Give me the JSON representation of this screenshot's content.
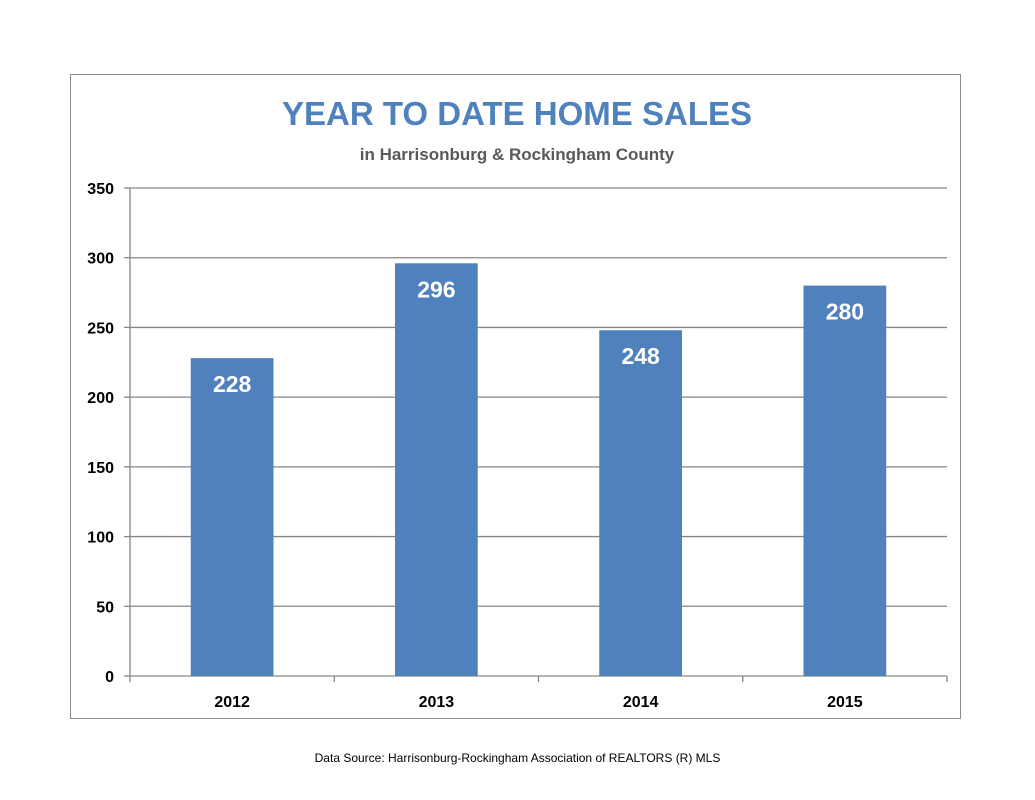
{
  "chart_data": {
    "type": "bar",
    "title": "YEAR TO DATE HOME SALES",
    "subtitle": "in Harrisonburg & Rockingham County",
    "categories": [
      "2012",
      "2013",
      "2014",
      "2015"
    ],
    "values": [
      228,
      296,
      248,
      280
    ],
    "data_labels": [
      "228",
      "296",
      "248",
      "280"
    ],
    "ylim": [
      0,
      350
    ],
    "yticks": [
      0,
      50,
      100,
      150,
      200,
      250,
      300,
      350
    ],
    "ytick_labels": [
      "0",
      "50",
      "100",
      "150",
      "200",
      "250",
      "300",
      "350"
    ],
    "grid": true,
    "legend": "none",
    "colors": {
      "bar": "#4f81bd",
      "title": "#4f81bd",
      "subtitle": "#595959",
      "grid": "#868686",
      "data_label": "#ffffff"
    }
  },
  "footer": {
    "source": "Data Source: Harrisonburg-Rockingham Association of REALTORS (R) MLS"
  }
}
